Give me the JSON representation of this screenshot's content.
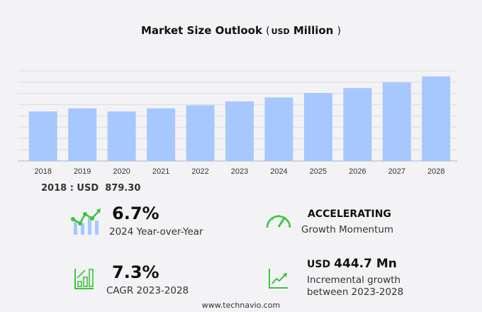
{
  "title": {
    "main": "Market Size Outlook",
    "unit": "USD",
    "unit_word": "Million"
  },
  "chart_data": {
    "type": "bar",
    "title": "Market Size Outlook (USD Million)",
    "categories": [
      "2018",
      "2019",
      "2020",
      "2021",
      "2022",
      "2023",
      "2024",
      "2025",
      "2026",
      "2027",
      "2028"
    ],
    "values": [
      879.3,
      935,
      879,
      935,
      990,
      1058,
      1128,
      1208,
      1296,
      1396,
      1502.7
    ],
    "ylim": [
      0,
      1600
    ],
    "grid": true,
    "bar_color": "#a6c8ff",
    "xlabel": "",
    "ylabel": ""
  },
  "base_label": "2018 : USD  879.30",
  "stats": {
    "yoy": {
      "value": "6.7%",
      "label": "2024 Year-over-Year"
    },
    "momentum": {
      "value": "ACCELERATING",
      "label": "Growth Momentum"
    },
    "cagr": {
      "value": "7.3%",
      "label": "CAGR 2023-2028"
    },
    "incremental": {
      "prefix": "USD",
      "value": "444.7 Mn",
      "label1": "Incremental growth",
      "label2": "between 2023-2028"
    }
  },
  "icons": {
    "yoy": "chart-trend-icon",
    "momentum": "speedometer-icon",
    "cagr": "bar-growth-icon",
    "incremental": "line-growth-icon"
  },
  "colors": {
    "accent": "#3cc43c",
    "bar": "#a6c8ff"
  },
  "footer": "www.technavio.com"
}
